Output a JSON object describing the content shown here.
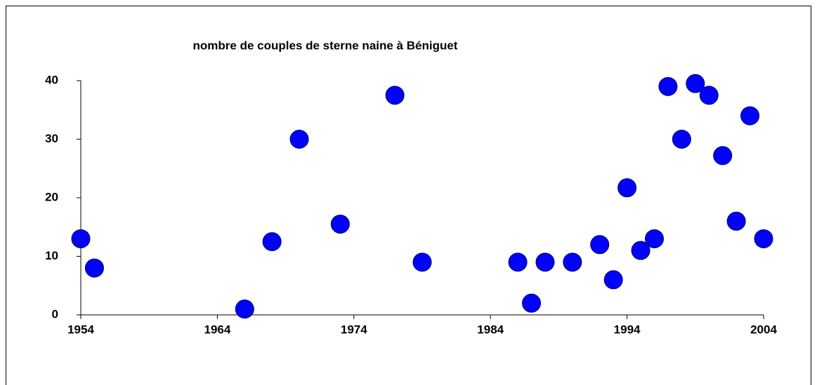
{
  "chart_data": {
    "type": "scatter",
    "title": "nombre de couples de sterne naine à Béniguet",
    "x": [
      1954,
      1955,
      1966,
      1968,
      1970,
      1973,
      1977,
      1979,
      1986,
      1987,
      1988,
      1990,
      1992,
      1993,
      1994,
      1995,
      1996,
      1997,
      1998,
      1999,
      2000,
      2001,
      2002,
      2003,
      2004
    ],
    "values": [
      13,
      8,
      1,
      12.5,
      30,
      15.5,
      37.5,
      9,
      9,
      2,
      9,
      9,
      12,
      6,
      21.7,
      11,
      13,
      39,
      30,
      39.5,
      37.5,
      27.2,
      16,
      34,
      13
    ],
    "color": "#0000ff",
    "xlim": [
      1954,
      2004
    ],
    "xticks": [
      1954,
      1964,
      1974,
      1984,
      1994,
      2004
    ],
    "ylim": [
      0,
      40
    ],
    "yticks": [
      0,
      10,
      20,
      30,
      40
    ],
    "grid": false
  }
}
